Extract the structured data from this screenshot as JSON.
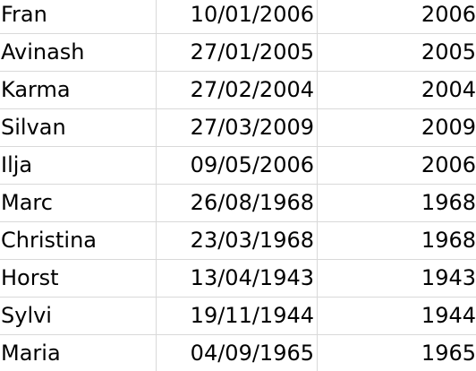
{
  "table": {
    "rows": [
      {
        "name": "Fran",
        "date": "10/01/2006",
        "year": "2006"
      },
      {
        "name": "Avinash",
        "date": "27/01/2005",
        "year": "2005"
      },
      {
        "name": "Karma",
        "date": "27/02/2004",
        "year": "2004"
      },
      {
        "name": "Silvan",
        "date": "27/03/2009",
        "year": "2009"
      },
      {
        "name": "Ilja",
        "date": "09/05/2006",
        "year": "2006"
      },
      {
        "name": "Marc",
        "date": "26/08/1968",
        "year": "1968"
      },
      {
        "name": "Christina",
        "date": "23/03/1968",
        "year": "1968"
      },
      {
        "name": "Horst",
        "date": "13/04/1943",
        "year": "1943"
      },
      {
        "name": "Sylvi",
        "date": "19/11/1944",
        "year": "1944"
      },
      {
        "name": "Maria",
        "date": "04/09/1965",
        "year": "1965"
      }
    ]
  }
}
